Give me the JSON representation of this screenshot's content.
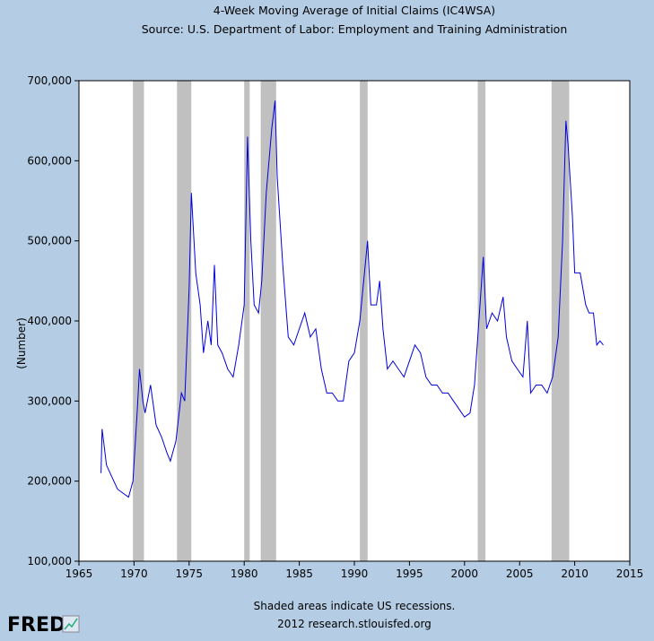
{
  "chart_data": {
    "type": "line",
    "title": "4-Week Moving Average of Initial Claims (IC4WSA)",
    "subtitle": "Source: U.S. Department of Labor: Employment and Training Administration",
    "y_label": "(Number)",
    "note": "Shaded areas indicate US recessions.",
    "credit": "2012 research.stlouisfed.org",
    "logo": "FRED",
    "xlim": [
      1965,
      2015
    ],
    "xticks": [
      1965,
      1970,
      1975,
      1980,
      1985,
      1990,
      1995,
      2000,
      2005,
      2010,
      2015
    ],
    "ylim": [
      100000,
      700000
    ],
    "yticks": [
      {
        "value": 100000,
        "label": "100,000"
      },
      {
        "value": 200000,
        "label": "200,000"
      },
      {
        "value": 300000,
        "label": "300,000"
      },
      {
        "value": 400000,
        "label": "400,000"
      },
      {
        "value": 500000,
        "label": "500,000"
      },
      {
        "value": 600000,
        "label": "600,000"
      },
      {
        "value": 700000,
        "label": "700,000"
      }
    ],
    "recessions": [
      [
        1969.9,
        1970.9
      ],
      [
        1973.9,
        1975.2
      ],
      [
        1980.0,
        1980.5
      ],
      [
        1981.5,
        1982.9
      ],
      [
        1990.5,
        1991.2
      ],
      [
        2001.2,
        2001.9
      ],
      [
        2007.9,
        2009.5
      ]
    ],
    "recession_color": "#c0c0c0",
    "series": [
      {
        "name": "IC4WSA",
        "color": "#0000dd",
        "x": [
          1967.0,
          1967.1,
          1967.5,
          1968.0,
          1968.5,
          1969.0,
          1969.5,
          1969.9,
          1970.3,
          1970.5,
          1970.8,
          1971.0,
          1971.5,
          1972.0,
          1972.5,
          1973.0,
          1973.3,
          1973.8,
          1974.3,
          1974.6,
          1975.0,
          1975.2,
          1975.6,
          1976.0,
          1976.3,
          1976.7,
          1977.0,
          1977.3,
          1977.6,
          1978.0,
          1978.5,
          1979.0,
          1979.5,
          1980.0,
          1980.3,
          1980.6,
          1980.9,
          1981.3,
          1981.6,
          1982.0,
          1982.5,
          1982.8,
          1983.0,
          1983.5,
          1984.0,
          1984.5,
          1985.0,
          1985.5,
          1986.0,
          1986.5,
          1987.0,
          1987.5,
          1988.0,
          1988.5,
          1989.0,
          1989.5,
          1990.0,
          1990.5,
          1991.2,
          1991.5,
          1992.0,
          1992.3,
          1992.6,
          1993.0,
          1993.5,
          1994.0,
          1994.5,
          1995.0,
          1995.5,
          1996.0,
          1996.5,
          1997.0,
          1997.5,
          1998.0,
          1998.5,
          1999.0,
          1999.5,
          2000.0,
          2000.5,
          2000.9,
          2001.3,
          2001.7,
          2002.0,
          2002.5,
          2003.0,
          2003.5,
          2003.8,
          2004.3,
          2004.8,
          2005.3,
          2005.7,
          2006.0,
          2006.5,
          2007.0,
          2007.5,
          2008.0,
          2008.5,
          2008.9,
          2009.2,
          2009.4,
          2009.8,
          2010.0,
          2010.5,
          2011.0,
          2011.3,
          2011.7,
          2012.0,
          2012.3,
          2012.6
        ],
        "values": [
          210000,
          265000,
          220000,
          205000,
          190000,
          185000,
          180000,
          200000,
          290000,
          340000,
          300000,
          285000,
          320000,
          270000,
          255000,
          235000,
          225000,
          250000,
          310000,
          300000,
          440000,
          560000,
          460000,
          420000,
          360000,
          400000,
          370000,
          470000,
          370000,
          360000,
          340000,
          330000,
          370000,
          420000,
          630000,
          500000,
          420000,
          410000,
          450000,
          560000,
          640000,
          675000,
          580000,
          470000,
          380000,
          370000,
          390000,
          410000,
          380000,
          390000,
          340000,
          310000,
          310000,
          300000,
          300000,
          350000,
          360000,
          400000,
          500000,
          420000,
          420000,
          450000,
          390000,
          340000,
          350000,
          340000,
          330000,
          350000,
          370000,
          360000,
          330000,
          320000,
          320000,
          310000,
          310000,
          300000,
          290000,
          280000,
          285000,
          320000,
          400000,
          480000,
          390000,
          410000,
          400000,
          430000,
          380000,
          350000,
          340000,
          330000,
          400000,
          310000,
          320000,
          320000,
          310000,
          330000,
          380000,
          500000,
          650000,
          620000,
          530000,
          460000,
          460000,
          420000,
          410000,
          410000,
          370000,
          375000,
          370000
        ]
      }
    ]
  }
}
